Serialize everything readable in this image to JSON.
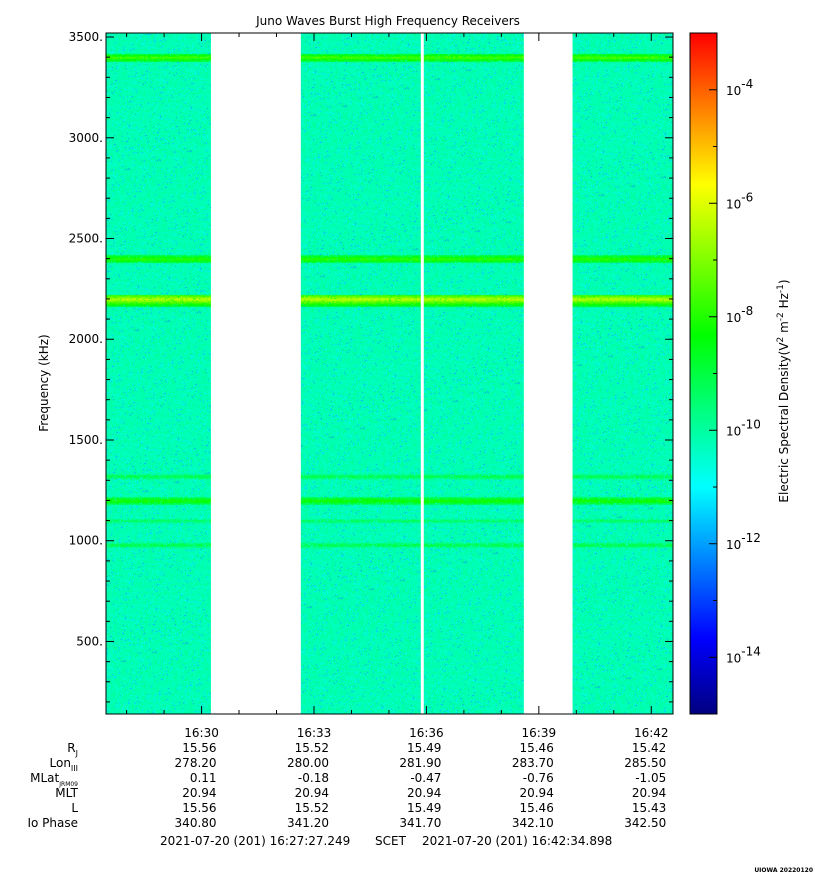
{
  "chart_data": {
    "type": "heatmap",
    "title": "Juno Waves Burst High Frequency Receivers",
    "ylabel": "Frequency (kHz)",
    "ylim": [
      140,
      3520
    ],
    "yticks": [
      {
        "value": 500,
        "label": "500."
      },
      {
        "value": 1000,
        "label": "1000."
      },
      {
        "value": 1500,
        "label": "1500."
      },
      {
        "value": 2000,
        "label": "2000."
      },
      {
        "value": 2500,
        "label": "2500."
      },
      {
        "value": 3000,
        "label": "3000."
      },
      {
        "value": 3500,
        "label": "3500."
      }
    ],
    "xlim_minutes": [
      987.45,
      1002.58
    ],
    "xticks": [
      {
        "value": 990,
        "label": "16:30"
      },
      {
        "value": 993,
        "label": "16:33"
      },
      {
        "value": 996,
        "label": "16:36"
      },
      {
        "value": 999,
        "label": "16:39"
      },
      {
        "value": 1002,
        "label": "16:42"
      }
    ],
    "data_gaps_minutes": [
      [
        990.25,
        992.65
      ],
      [
        995.85,
        995.93
      ],
      [
        998.6,
        999.9
      ]
    ],
    "emission_lines_khz": [
      {
        "f": 3400,
        "level": 0.62
      },
      {
        "f": 2400,
        "level": 0.6
      },
      {
        "f": 2200,
        "level": 0.72
      },
      {
        "f": 2180,
        "level": 0.6
      },
      {
        "f": 1320,
        "level": 0.5
      },
      {
        "f": 1200,
        "level": 0.58
      },
      {
        "f": 1100,
        "level": 0.48
      },
      {
        "f": 980,
        "level": 0.5
      }
    ],
    "background_level": 0.4,
    "colorbar": {
      "label": "Electric Spectral Density",
      "units_base": "(V",
      "units_sup1": "2",
      "units_mid": " m",
      "units_sup2": "-2",
      "units_mid2": " Hz",
      "units_sup3": "-1",
      "units_end": ")",
      "tick_base": "10",
      "ticks": [
        {
          "exp": -4,
          "label": "-4"
        },
        {
          "exp": -6,
          "label": "-6"
        },
        {
          "exp": -8,
          "label": "-8"
        },
        {
          "exp": -10,
          "label": "-10"
        },
        {
          "exp": -12,
          "label": "-12"
        },
        {
          "exp": -14,
          "label": "-14"
        }
      ],
      "range_exp": [
        -15,
        -3
      ],
      "colors": [
        "#000080",
        "#0000ff",
        "#0080ff",
        "#00ffff",
        "#00ff80",
        "#00ff00",
        "#80ff00",
        "#ffff00",
        "#ff8000",
        "#ff0000"
      ]
    },
    "ephemeris": {
      "rows": [
        {
          "label": "R",
          "sub": "J",
          "values": [
            "15.56",
            "15.52",
            "15.49",
            "15.46",
            "15.42"
          ]
        },
        {
          "label": "Lon",
          "sub": "III",
          "values": [
            "278.20",
            "280.00",
            "281.90",
            "283.70",
            "285.50"
          ]
        },
        {
          "label": "MLat",
          "sub": "JRM09",
          "values": [
            "0.11",
            "-0.18",
            "-0.47",
            "-0.76",
            "-1.05"
          ]
        },
        {
          "label": "MLT",
          "sub": "",
          "values": [
            "20.94",
            "20.94",
            "20.94",
            "20.94",
            "20.94"
          ]
        },
        {
          "label": "L",
          "sub": "",
          "values": [
            "15.56",
            "15.52",
            "15.49",
            "15.46",
            "15.43"
          ]
        },
        {
          "label": "Io Phase",
          "sub": "",
          "values": [
            "340.80",
            "341.20",
            "341.70",
            "342.10",
            "342.50"
          ]
        }
      ]
    },
    "time_range": {
      "start": "2021-07-20 (201) 16:27:27.249",
      "mid": "SCET",
      "end": "2021-07-20 (201) 16:42:34.898"
    },
    "credit": "UIOWA 20220120"
  }
}
